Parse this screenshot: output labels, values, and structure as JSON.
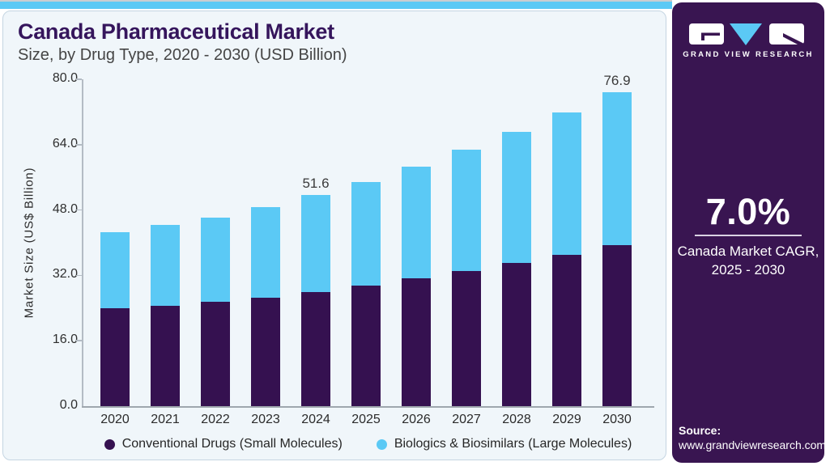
{
  "header": {
    "title": "Canada Pharmaceutical Market",
    "subtitle": "Size, by Drug Type, 2020 - 2030 (USD Billion)"
  },
  "chart_data": {
    "type": "bar",
    "stacked": true,
    "title": "Canada Pharmaceutical Market Size, by Drug Type, 2020 - 2030 (USD Billion)",
    "xlabel": "",
    "ylabel": "Market Size (US$ Billion)",
    "ylim": [
      0,
      80
    ],
    "ytick_labels": [
      "80.0",
      "64.0",
      "48.0",
      "32.0",
      "16.0",
      "0.0"
    ],
    "grid": false,
    "legend_position": "bottom",
    "categories": [
      "2020",
      "2021",
      "2022",
      "2023",
      "2024",
      "2025",
      "2026",
      "2027",
      "2028",
      "2029",
      "2030"
    ],
    "series": [
      {
        "name": "Conventional Drugs (Small Molecules)",
        "color": "#351150",
        "values": [
          24.0,
          24.5,
          25.5,
          26.6,
          27.9,
          29.5,
          31.2,
          33.0,
          35.0,
          37.1,
          39.4
        ]
      },
      {
        "name": "Biologics & Biosimilars (Large Molecules)",
        "color": "#5bc9f5",
        "values": [
          18.6,
          19.8,
          20.7,
          22.1,
          23.7,
          25.3,
          27.5,
          29.8,
          32.2,
          34.8,
          37.5
        ]
      }
    ],
    "totals": [
      42.6,
      44.3,
      46.2,
      48.7,
      51.6,
      54.8,
      58.7,
      62.8,
      67.2,
      71.9,
      76.9
    ],
    "data_labels": {
      "2024": "51.6",
      "2030": "76.9"
    }
  },
  "panel": {
    "brand": "GRAND VIEW RESEARCH",
    "cagr_value": "7.0%",
    "cagr_caption_line1": "Canada Market CAGR,",
    "cagr_caption_line2": "2025 - 2030",
    "source_label": "Source:",
    "source_url": "www.grandviewresearch.com",
    "panel_color": "#391551",
    "accent_blue": "#5bc9f5"
  }
}
